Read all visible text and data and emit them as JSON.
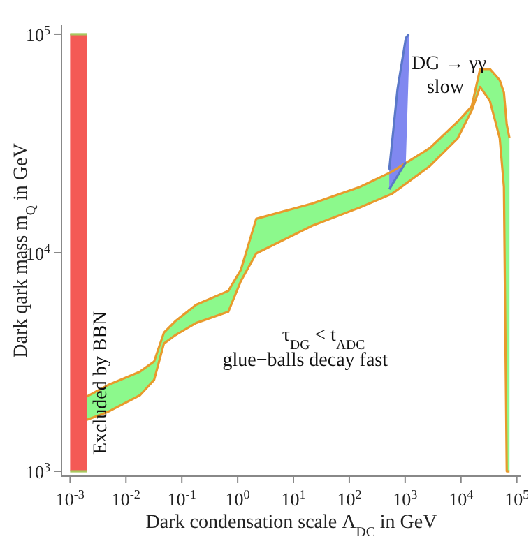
{
  "chart_data": {
    "type": "line",
    "xlabel": "Dark condensation scale Λ$_{DC}$ in GeV",
    "ylabel": "Dark qark mass m$_{Q}$ in GeV",
    "log": "xy",
    "xlim": [
      0.0007,
      120000
    ],
    "ylim": [
      950,
      110000
    ],
    "xticks": [
      {
        "value": 0.001,
        "label": "10$^{-3}$"
      },
      {
        "value": 0.01,
        "label": "10$^{-2}$"
      },
      {
        "value": 0.1,
        "label": "10$^{-1}$"
      },
      {
        "value": 1,
        "label": "10$^{0}$"
      },
      {
        "value": 10,
        "label": "10$^{1}$"
      },
      {
        "value": 100,
        "label": "10$^{2}$"
      },
      {
        "value": 1000,
        "label": "10$^{3}$"
      },
      {
        "value": 10000,
        "label": "10$^{4}$"
      },
      {
        "value": 100000,
        "label": "10$^{5}$"
      }
    ],
    "yticks": [
      {
        "value": 1000,
        "label": "10$^{3}$"
      },
      {
        "value": 10000,
        "label": "10$^{4}$"
      },
      {
        "value": 100000,
        "label": "10$^{5}$"
      }
    ],
    "series": [
      {
        "name": "Excluded by BBN",
        "color": "#a8c860",
        "x": [
          0.001,
          0.002
        ],
        "values": [
          100000,
          100000
        ],
        "lower": [
          1000,
          1000
        ],
        "upper": [
          100000,
          100000
        ]
      },
      {
        "color": "#a8c860",
        "x": [
          0.001,
          0.002
        ],
        "values": [
          1000,
          1000
        ]
      },
      {
        "color": "#e89a2c",
        "x": [
          0.002,
          0.00475,
          0.0179,
          0.0319,
          0.0478,
          0.0758,
          0.18,
          0.68,
          1.14,
          2.15,
          21.7,
          154,
          580,
          2760,
          8750,
          15600,
          22000,
          33000,
          49500,
          58800,
          66000,
          74000
        ],
        "values": [
          2200,
          2480,
          2860,
          3180,
          4310,
          4850,
          5780,
          6690,
          8340,
          14300,
          16800,
          20000,
          23500,
          30100,
          39800,
          46800,
          69300,
          69300,
          61600,
          54100,
          38600,
          33400
        ]
      },
      {
        "color": "#e89a2c",
        "x": [
          0.002,
          0.00475,
          0.0179,
          0.0319,
          0.0478,
          0.0758,
          0.18,
          0.68,
          1.14,
          2.15,
          21.7,
          154,
          580,
          2760,
          8750,
          15600,
          22000,
          33000,
          49500,
          58800,
          66000,
          74000
        ],
        "values": [
          1720,
          1870,
          2230,
          2620,
          3840,
          4190,
          4770,
          5370,
          7410,
          9930,
          13300,
          16100,
          18600,
          24900,
          33400,
          44800,
          57400,
          49500,
          33400,
          20000,
          1000,
          1000
        ],
        "lower": [
          1720,
          1870,
          2230,
          2620,
          3840,
          4190,
          4770,
          5370,
          7410,
          9930,
          13300,
          16100,
          18600,
          24900,
          33400,
          44800,
          57400,
          49500,
          33400,
          20000,
          1000,
          1000
        ],
        "upper": [
          2200,
          2480,
          2860,
          3180,
          4310,
          4850,
          5780,
          6690,
          8340,
          14300,
          16800,
          20000,
          23500,
          30100,
          39800,
          46800,
          69300,
          69300,
          61600,
          54100,
          38600,
          33400
        ]
      },
      {
        "color": "#5a78c8",
        "x": [
          520,
          730,
          1030,
          1160
        ],
        "values": [
          24000,
          56000,
          96000,
          100000
        ],
        "lower": [
          19500,
          22500,
          26000,
          69000
        ],
        "upper": [
          24000,
          56000,
          96000,
          100000
        ]
      },
      {
        "color": "#5a78c8",
        "x": [
          520,
          730,
          1030
        ],
        "values": [
          19500,
          22500,
          26000
        ]
      }
    ],
    "annotations": [
      "τ$_{DG}$ < t$_{ΛDC}$",
      "glue−balls decay fast",
      {
        "text": "DG → γγ",
        "x": 1160,
        "y": 74600
      },
      "slow"
    ]
  }
}
